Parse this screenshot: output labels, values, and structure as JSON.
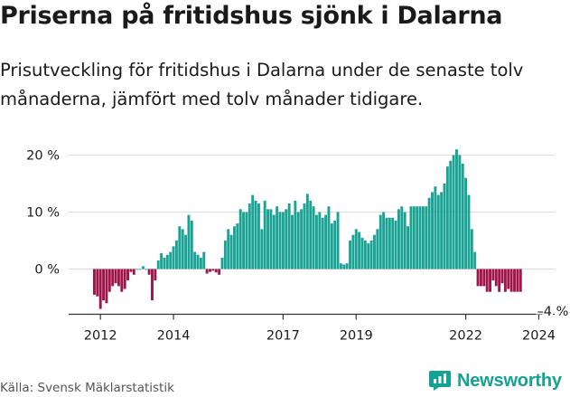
{
  "title": "Priserna på fritidshus sjönk i Dalarna",
  "subtitle": "Prisutveckling för fritidshus i Dalarna under de senaste tolv månaderna, jämfört med tolv månader tidigare.",
  "source": "Källa: Svensk Mäklarstatistik",
  "brand": "Newsworthy",
  "colors": {
    "positive": "#1aa394",
    "negative": "#a0144a",
    "text": "#1a1a1a",
    "axis": "#333333"
  },
  "chart_data": {
    "type": "bar",
    "title": "Priserna på fritidshus sjönk i Dalarna",
    "xlabel": "",
    "ylabel": "",
    "unit": "%",
    "ylim": [
      -8,
      21
    ],
    "y_ticks": [
      0,
      10,
      20
    ],
    "y_tick_labels": [
      "0 %",
      "10 %",
      "20 %"
    ],
    "x_ticks": [
      2012,
      2014,
      2017,
      2019,
      2022,
      2024
    ],
    "x_tick_labels": [
      "2012",
      "2014",
      "2017",
      "2019",
      "2022",
      "2024"
    ],
    "start": {
      "year": 2011,
      "month": 11
    },
    "annotation": {
      "text": "–4 %",
      "index": 150
    },
    "values": [
      -4.5,
      -4.8,
      -7.0,
      -5.5,
      -6.0,
      -4.0,
      -3.0,
      -2.5,
      -3.0,
      -4.0,
      -3.5,
      -2.0,
      -0.5,
      -1.0,
      0.0,
      0.0,
      0.5,
      0.0,
      -1.0,
      -5.5,
      -2.0,
      1.5,
      2.8,
      2.0,
      2.5,
      3.0,
      4.0,
      5.0,
      7.5,
      7.0,
      6.0,
      9.5,
      8.5,
      3.0,
      2.5,
      2.0,
      3.0,
      -0.8,
      -0.5,
      -0.3,
      -0.6,
      -1.0,
      2.0,
      5.0,
      7.0,
      6.0,
      7.5,
      8.0,
      10.5,
      10.0,
      10.0,
      11.5,
      13.0,
      12.0,
      11.5,
      7.0,
      12.0,
      10.5,
      10.5,
      9.5,
      11.0,
      10.0,
      10.0,
      10.5,
      11.5,
      9.5,
      12.0,
      10.0,
      10.5,
      11.5,
      13.2,
      12.0,
      11.0,
      9.5,
      10.0,
      9.0,
      9.5,
      11.0,
      8.0,
      8.5,
      10.0,
      1.0,
      0.8,
      1.0,
      5.0,
      6.0,
      7.0,
      6.5,
      5.5,
      5.0,
      4.5,
      5.0,
      6.0,
      7.0,
      9.5,
      10.0,
      9.0,
      9.0,
      9.0,
      8.5,
      10.5,
      11.0,
      10.0,
      7.5,
      11.0,
      11.0,
      11.0,
      11.0,
      11.0,
      11.0,
      12.5,
      13.5,
      14.5,
      13.0,
      13.5,
      15.0,
      18.0,
      19.0,
      20.0,
      21.0,
      20.0,
      18.5,
      16.0,
      13.0,
      7.0,
      3.0,
      -3.0,
      -3.0,
      -3.0,
      -4.0,
      -4.0,
      -2.0,
      -3.0,
      -4.0,
      -2.5,
      -4.0,
      -3.5,
      -4.0,
      -4.0,
      -4.0,
      -4.0
    ]
  }
}
